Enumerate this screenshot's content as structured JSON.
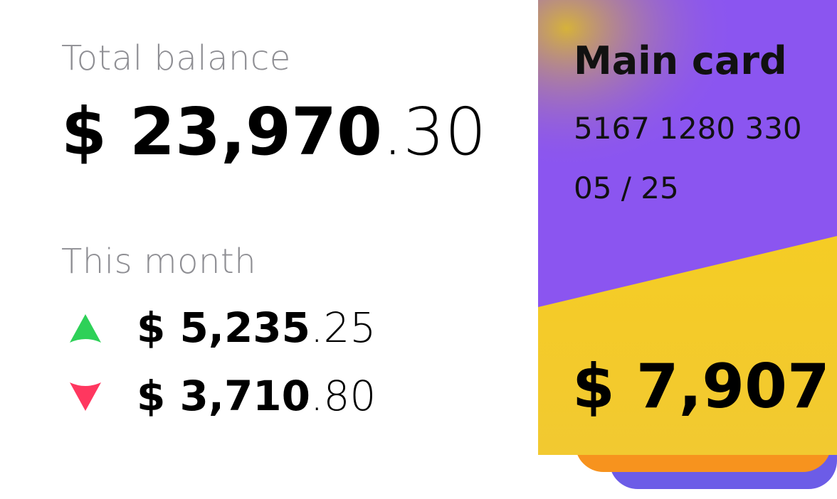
{
  "summary": {
    "total_label": "Total balance",
    "total_whole": "$ 23,970",
    "total_cents": ".30",
    "month_label": "This month",
    "income": {
      "icon": "arrow-up-icon",
      "whole": "$ 5,235",
      "cents": ".25",
      "color": "#2ed158"
    },
    "expense": {
      "icon": "arrow-down-icon",
      "whole": "$ 3,710",
      "cents": ".80",
      "color": "#ff375f"
    }
  },
  "card": {
    "title": "Main card",
    "number": "5167 1280 330",
    "expiry": "05 / 25",
    "balance": "$ 7,907",
    "colors": {
      "purple": "#8b55f0",
      "yellow": "#f6cd1e",
      "orange": "#f7931e",
      "blue": "#6c5ce7"
    }
  }
}
